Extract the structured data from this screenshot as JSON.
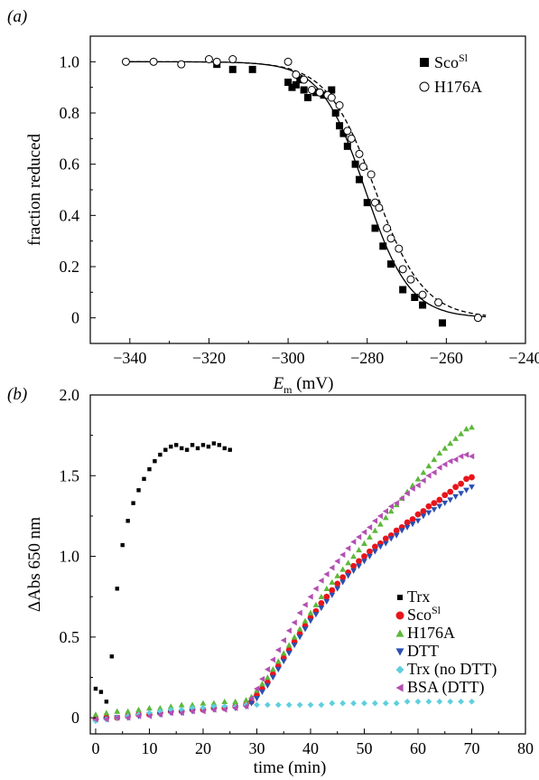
{
  "chart_data": [
    {
      "type": "scatter",
      "panel_label": "(a)",
      "xlabel_main": "E",
      "xlabel_sub": "m",
      "xlabel_unit": " (mV)",
      "ylabel": "fraction reduced",
      "xlim": [
        -350,
        -240
      ],
      "ylim": [
        -0.1,
        1.1
      ],
      "xticks": [
        -340,
        -320,
        -300,
        -280,
        -260,
        -240
      ],
      "xtick_labels": [
        "−340",
        "−320",
        "−300",
        "−280",
        "−260",
        "−240"
      ],
      "yticks": [
        0,
        0.2,
        0.4,
        0.6,
        0.8,
        1.0
      ],
      "ytick_labels": [
        "0",
        "0.2",
        "0.4",
        "0.6",
        "0.8",
        "1.0"
      ],
      "legend_position": "top-right",
      "series": [
        {
          "name": "Sco",
          "name_sup": "Sl",
          "marker": "square-filled",
          "color": "#000000",
          "x": [
            -318,
            -314,
            -309,
            -300,
            -299,
            -298,
            -297,
            -296,
            -295,
            -293,
            -291,
            -289,
            -288,
            -287,
            -286,
            -285,
            -283,
            -282,
            -280,
            -278,
            -276,
            -274,
            -271,
            -268,
            -266,
            -261
          ],
          "y": [
            0.99,
            0.97,
            0.97,
            0.92,
            0.9,
            0.91,
            0.93,
            0.89,
            0.86,
            0.88,
            0.87,
            0.89,
            0.8,
            0.75,
            0.72,
            0.67,
            0.6,
            0.54,
            0.45,
            0.35,
            0.28,
            0.21,
            0.11,
            0.08,
            0.05,
            -0.02
          ]
        },
        {
          "name": "H176A",
          "marker": "circle-open",
          "color": "#000000",
          "x": [
            -341,
            -334,
            -327,
            -320,
            -318,
            -314,
            -300,
            -298,
            -296,
            -294,
            -292,
            -290,
            -289,
            -287,
            -285,
            -284,
            -282,
            -281,
            -279,
            -278,
            -277,
            -275,
            -274,
            -272,
            -271,
            -269,
            -266,
            -262,
            -252
          ],
          "y": [
            1.0,
            1.0,
            0.99,
            1.01,
            1.0,
            1.01,
            1.0,
            0.95,
            0.93,
            0.89,
            0.88,
            0.87,
            0.86,
            0.83,
            0.73,
            0.7,
            0.64,
            0.59,
            0.56,
            0.45,
            0.43,
            0.35,
            0.31,
            0.27,
            0.19,
            0.15,
            0.09,
            0.06,
            0.0
          ]
        }
      ],
      "fits": [
        {
          "for": "Sco",
          "style": "solid",
          "em_mid": -280.5,
          "n_factor": 5.6
        },
        {
          "for": "H176A",
          "style": "dashed",
          "em_mid": -278.0,
          "n_factor": 6.1
        }
      ]
    },
    {
      "type": "scatter",
      "panel_label": "(b)",
      "xlabel": "time (min)",
      "ylabel": "ΔAbs 650 nm",
      "xlim": [
        -1,
        80
      ],
      "ylim": [
        -0.1,
        2.0
      ],
      "xticks": [
        0,
        10,
        20,
        30,
        40,
        50,
        60,
        70,
        80
      ],
      "xtick_labels": [
        "0",
        "10",
        "20",
        "30",
        "40",
        "50",
        "60",
        "70",
        "80"
      ],
      "yticks": [
        0,
        0.5,
        1.0,
        1.5,
        2.0
      ],
      "ytick_labels": [
        "0",
        "0.5",
        "1.0",
        "1.5",
        "2.0"
      ],
      "legend_position": "center-right",
      "series": [
        {
          "name": "Trx",
          "marker": "square",
          "color": "#000000",
          "x": [
            0,
            1,
            2,
            3,
            4,
            5,
            6,
            7,
            8,
            9,
            10,
            11,
            12,
            13,
            14,
            15,
            16,
            17,
            18,
            19,
            20,
            21,
            22,
            23,
            24,
            25
          ],
          "y": [
            0.18,
            0.16,
            0.1,
            0.38,
            0.8,
            1.07,
            1.22,
            1.33,
            1.41,
            1.48,
            1.54,
            1.59,
            1.63,
            1.66,
            1.68,
            1.69,
            1.67,
            1.66,
            1.69,
            1.67,
            1.69,
            1.68,
            1.7,
            1.69,
            1.67,
            1.66
          ]
        },
        {
          "name": "Sco",
          "name_sup": "Sl",
          "marker": "circle",
          "color": "#e8141b",
          "x": [
            0,
            2,
            4,
            6,
            8,
            10,
            12,
            14,
            16,
            18,
            20,
            22,
            24,
            26,
            28,
            29,
            30,
            31,
            32,
            33,
            34,
            35,
            36,
            37,
            38,
            39,
            40,
            41,
            42,
            43,
            44,
            45,
            46,
            47,
            48,
            49,
            50,
            51,
            52,
            53,
            54,
            55,
            56,
            57,
            58,
            59,
            60,
            61,
            62,
            63,
            64,
            65,
            66,
            67,
            68,
            69,
            70
          ],
          "y": [
            -0.01,
            0.0,
            0.0,
            0.01,
            0.02,
            0.02,
            0.03,
            0.04,
            0.04,
            0.05,
            0.05,
            0.06,
            0.06,
            0.07,
            0.08,
            0.1,
            0.14,
            0.18,
            0.22,
            0.27,
            0.32,
            0.37,
            0.42,
            0.47,
            0.52,
            0.57,
            0.62,
            0.66,
            0.71,
            0.75,
            0.79,
            0.83,
            0.87,
            0.9,
            0.94,
            0.97,
            1.0,
            1.03,
            1.06,
            1.08,
            1.11,
            1.13,
            1.16,
            1.18,
            1.21,
            1.23,
            1.26,
            1.28,
            1.31,
            1.33,
            1.35,
            1.38,
            1.4,
            1.43,
            1.45,
            1.48,
            1.49
          ]
        },
        {
          "name": "H176A",
          "marker": "triangle-up",
          "color": "#5cb83a",
          "x": [
            0,
            2,
            4,
            6,
            8,
            10,
            12,
            14,
            16,
            18,
            20,
            22,
            24,
            26,
            28,
            29,
            30,
            31,
            32,
            33,
            34,
            35,
            36,
            37,
            38,
            39,
            40,
            41,
            42,
            43,
            44,
            45,
            46,
            47,
            48,
            49,
            50,
            51,
            52,
            53,
            54,
            55,
            56,
            57,
            58,
            59,
            60,
            61,
            62,
            63,
            64,
            65,
            66,
            67,
            68,
            69,
            70
          ],
          "y": [
            0.02,
            0.03,
            0.04,
            0.04,
            0.05,
            0.06,
            0.06,
            0.07,
            0.08,
            0.08,
            0.09,
            0.09,
            0.1,
            0.1,
            0.11,
            0.13,
            0.17,
            0.21,
            0.25,
            0.3,
            0.35,
            0.4,
            0.45,
            0.5,
            0.55,
            0.6,
            0.65,
            0.7,
            0.75,
            0.8,
            0.84,
            0.88,
            0.92,
            0.96,
            1.0,
            1.04,
            1.08,
            1.12,
            1.16,
            1.2,
            1.24,
            1.28,
            1.32,
            1.36,
            1.4,
            1.44,
            1.48,
            1.52,
            1.56,
            1.6,
            1.64,
            1.67,
            1.7,
            1.73,
            1.76,
            1.79,
            1.8
          ]
        },
        {
          "name": "DTT",
          "marker": "triangle-down",
          "color": "#2b4fb0",
          "x": [
            0,
            2,
            4,
            6,
            8,
            10,
            12,
            14,
            16,
            18,
            20,
            22,
            24,
            26,
            28,
            29,
            30,
            31,
            32,
            33,
            34,
            35,
            36,
            37,
            38,
            39,
            40,
            41,
            42,
            43,
            44,
            45,
            46,
            47,
            48,
            49,
            50,
            51,
            52,
            53,
            54,
            55,
            56,
            57,
            58,
            59,
            60,
            61,
            62,
            63,
            64,
            65,
            66,
            67,
            68,
            69,
            70
          ],
          "y": [
            -0.02,
            -0.01,
            0.0,
            0.0,
            0.01,
            0.02,
            0.02,
            0.03,
            0.03,
            0.04,
            0.05,
            0.05,
            0.06,
            0.06,
            0.07,
            0.09,
            0.12,
            0.16,
            0.2,
            0.25,
            0.3,
            0.35,
            0.4,
            0.45,
            0.5,
            0.55,
            0.6,
            0.64,
            0.68,
            0.72,
            0.76,
            0.8,
            0.84,
            0.88,
            0.91,
            0.94,
            0.97,
            1.0,
            1.03,
            1.06,
            1.08,
            1.11,
            1.13,
            1.16,
            1.18,
            1.2,
            1.22,
            1.25,
            1.27,
            1.29,
            1.31,
            1.33,
            1.35,
            1.37,
            1.39,
            1.41,
            1.43
          ]
        },
        {
          "name": "Trx (no DTT)",
          "marker": "diamond",
          "color": "#5fcfdf",
          "x": [
            0,
            2,
            4,
            6,
            8,
            10,
            12,
            14,
            16,
            18,
            20,
            22,
            24,
            26,
            28,
            30,
            32,
            34,
            36,
            38,
            40,
            42,
            44,
            46,
            48,
            50,
            52,
            54,
            56,
            58,
            60,
            62,
            64,
            66,
            68,
            70
          ],
          "y": [
            -0.02,
            -0.01,
            0.0,
            0.01,
            0.02,
            0.03,
            0.04,
            0.05,
            0.05,
            0.06,
            0.06,
            0.07,
            0.07,
            0.07,
            0.08,
            0.08,
            0.08,
            0.08,
            0.08,
            0.08,
            0.08,
            0.08,
            0.09,
            0.09,
            0.09,
            0.09,
            0.09,
            0.09,
            0.09,
            0.1,
            0.1,
            0.1,
            0.1,
            0.1,
            0.1,
            0.1
          ]
        },
        {
          "name": "BSA (DTT)",
          "marker": "triangle-left",
          "color": "#b34fb3",
          "x": [
            0,
            2,
            4,
            6,
            8,
            10,
            12,
            14,
            16,
            18,
            20,
            22,
            24,
            26,
            28,
            29,
            30,
            31,
            32,
            33,
            34,
            35,
            36,
            37,
            38,
            39,
            40,
            41,
            42,
            43,
            44,
            45,
            46,
            47,
            48,
            49,
            50,
            51,
            52,
            53,
            54,
            55,
            56,
            57,
            58,
            59,
            60,
            61,
            62,
            63,
            64,
            65,
            66,
            67,
            68,
            69,
            70
          ],
          "y": [
            -0.01,
            -0.01,
            0.0,
            0.0,
            0.01,
            0.01,
            0.02,
            0.03,
            0.03,
            0.04,
            0.04,
            0.05,
            0.05,
            0.06,
            0.07,
            0.12,
            0.18,
            0.24,
            0.3,
            0.36,
            0.42,
            0.48,
            0.54,
            0.59,
            0.65,
            0.7,
            0.75,
            0.8,
            0.85,
            0.89,
            0.93,
            0.97,
            1.01,
            1.05,
            1.09,
            1.12,
            1.15,
            1.18,
            1.22,
            1.25,
            1.28,
            1.31,
            1.33,
            1.36,
            1.39,
            1.42,
            1.44,
            1.47,
            1.5,
            1.52,
            1.55,
            1.57,
            1.59,
            1.6,
            1.62,
            1.63,
            1.62
          ]
        }
      ]
    }
  ]
}
